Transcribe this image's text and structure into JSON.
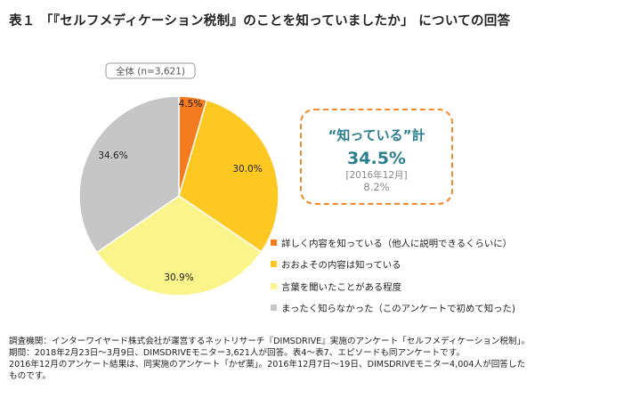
{
  "title": "表１ 「『セルフメディケーション税制』のことを知っていましたか」 についての回答",
  "chart_data": {
    "type": "pie",
    "title": "",
    "base_label": "全体 (n=3,621)",
    "categories": [
      "詳しく内容を知っている（他人に説明できるくらいに）",
      "おおよその内容は知っている",
      "言葉を聞いたことがある程度",
      "まったく知らなかった（このアンケートで初めて知った)"
    ],
    "values": [
      4.5,
      30.0,
      30.9,
      34.6
    ],
    "value_labels": [
      "4.5%",
      "30.0%",
      "30.9%",
      "34.6%"
    ],
    "colors": [
      "#f47c20",
      "#fdc822",
      "#fbf48a",
      "#c6c6c6"
    ],
    "legend_position": "right"
  },
  "callout": {
    "label": "“知っている”計",
    "value": "34.5%",
    "previous_label": "[2016年12月]",
    "previous_value": "8.2%"
  },
  "notes": [
    "調査機関：インターワイヤード株式会社が運営するネットリサーチ『DIMSDRIVE』実施のアンケート「セルフメディケーション税制」。",
    "期間：2018年2月23日～3月9日、DIMSDRIVEモニター3,621人が回答。表4～表7、エピソードも同アンケートです。",
    "2016年12月のアンケート結果は、同実施のアンケート「かぜ薬」。2016年12月7日～19日、DIMSDRIVEモニター4,004人が回答した",
    "ものです。"
  ]
}
